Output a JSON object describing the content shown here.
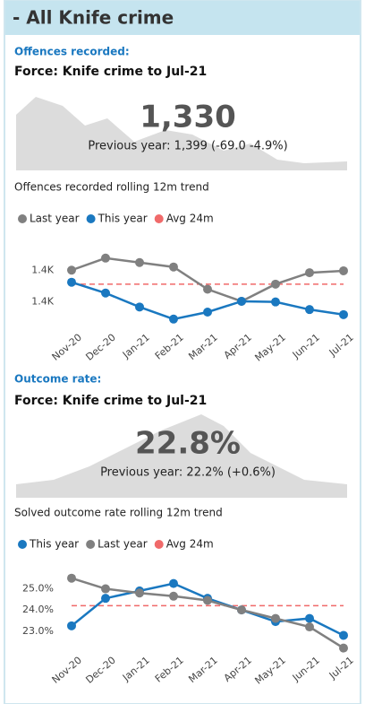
{
  "header": {
    "title": "- All Knife crime"
  },
  "sections": [
    {
      "label": "Offences recorded:",
      "subtitle": "Force: Knife crime to Jul-21",
      "kpi_value": "1,330",
      "kpi_comparison": "Previous year: 1,399 (-69.0 -4.9%)",
      "trend_title": "Offences recorded rolling 12m trend"
    },
    {
      "label": "Outcome rate:",
      "subtitle": "Force: Knife crime to Jul-21",
      "kpi_value": "22.8%",
      "kpi_comparison": "Previous year: 22.2% (+0.6%)",
      "trend_title": "Solved outcome rate rolling 12m trend"
    }
  ],
  "chart_data": [
    {
      "type": "line",
      "categories": [
        "Nov-20",
        "Dec-20",
        "Jan-21",
        "Feb-21",
        "Mar-21",
        "Apr-21",
        "May-21",
        "Jun-21",
        "Jul-21"
      ],
      "series": [
        {
          "name": "Last year",
          "color": "#808080",
          "markers": true,
          "values": [
            1400,
            1419,
            1412,
            1405,
            1370,
            1351,
            1378,
            1396,
            1399
          ]
        },
        {
          "name": "This year",
          "color": "#1a78c0",
          "markers": true,
          "values": [
            1381,
            1364,
            1342,
            1323,
            1334,
            1351,
            1350,
            1338,
            1330
          ]
        },
        {
          "name": "Avg 24m",
          "color": "#f06a6a",
          "markers": false,
          "line_style": "dashed",
          "values": [
            1378,
            1378,
            1378,
            1378,
            1378,
            1378,
            1378,
            1378,
            1378
          ]
        }
      ],
      "ylim": [
        1310,
        1430
      ],
      "yticks": [
        {
          "value": 1400,
          "label": "1.4K"
        },
        {
          "value": 1350,
          "label": "1.4K"
        }
      ]
    },
    {
      "type": "line",
      "categories": [
        "Nov-20",
        "Dec-20",
        "Jan-21",
        "Feb-21",
        "Mar-21",
        "Apr-21",
        "May-21",
        "Jun-21",
        "Jul-21"
      ],
      "series": [
        {
          "name": "This year",
          "color": "#1a78c0",
          "markers": true,
          "values": [
            23.25,
            24.55,
            24.9,
            25.25,
            24.55,
            24.0,
            23.45,
            23.6,
            22.8
          ]
        },
        {
          "name": "Last year",
          "color": "#808080",
          "markers": true,
          "values": [
            25.5,
            25.0,
            24.8,
            24.65,
            24.45,
            24.0,
            23.6,
            23.2,
            22.2
          ]
        },
        {
          "name": "Avg 24m",
          "color": "#f06a6a",
          "markers": false,
          "line_style": "dashed",
          "values": [
            24.2,
            24.2,
            24.2,
            24.2,
            24.2,
            24.2,
            24.2,
            24.2,
            24.2
          ]
        }
      ],
      "ylim": [
        22.1,
        25.7
      ],
      "yticks": [
        {
          "value": 25,
          "label": "25.0%"
        },
        {
          "value": 24,
          "label": "24.0%"
        },
        {
          "value": 23,
          "label": "23.0%"
        }
      ]
    }
  ]
}
